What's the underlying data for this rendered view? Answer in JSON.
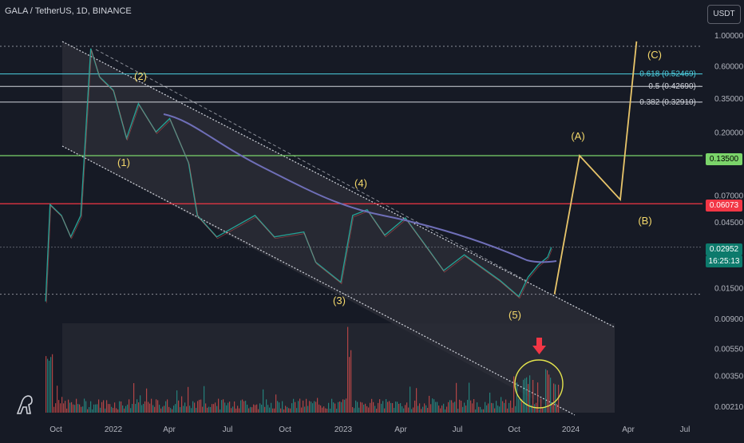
{
  "header": {
    "title": "GALA / TetherUS, 1D, BINANCE"
  },
  "currency_button": "USDT",
  "colors": {
    "background": "#161a25",
    "channel_line": "#d1d4dc",
    "moving_average": "#6f6fb8",
    "wave_labels": "#f5d96b",
    "projection": "#e8c56a",
    "fib_0618": "#4dd0e1",
    "fib_other": "#d1d4dc",
    "green_level": "#7bd46a",
    "red_level": "#f23645",
    "circle": "#e3e34d",
    "arrow": "#f23645"
  },
  "price_labels": {
    "green": "0.13500",
    "red": "0.06073",
    "current": "0.02952",
    "countdown": "16:25:13"
  },
  "chart_data": {
    "type": "line",
    "title": "GALA / TetherUS, 1D, BINANCE",
    "y_scale": "log",
    "y_ticks": [
      "1.00000",
      "0.60000",
      "0.35000",
      "0.20000",
      "0.07000",
      "0.04500",
      "0.01500",
      "0.00900",
      "0.00550",
      "0.00350",
      "0.00210"
    ],
    "x_ticks": [
      "Oct",
      "2022",
      "Apr",
      "Jul",
      "Oct",
      "2023",
      "Apr",
      "Jul",
      "Oct",
      "2024",
      "Apr",
      "Jul"
    ],
    "fib_levels": [
      {
        "label": "0.618 (0.52469)",
        "value": 0.52469
      },
      {
        "label": "0.5 (0.42690)",
        "value": 0.4269
      },
      {
        "label": "0.382 (0.32910)",
        "value": 0.3291
      }
    ],
    "horizontal_levels": [
      {
        "value": 0.135,
        "label": "0.13500"
      },
      {
        "value": 0.06073,
        "label": "0.06073"
      }
    ],
    "wave_labels": [
      "(1)",
      "(2)",
      "(3)",
      "(4)",
      "(5)",
      "(A)",
      "(B)",
      "(C)"
    ],
    "price_series": [
      {
        "date": "2021-09-15",
        "price": 0.012
      },
      {
        "date": "2021-09-22",
        "price": 0.06
      },
      {
        "date": "2021-10-10",
        "price": 0.05
      },
      {
        "date": "2021-10-25",
        "price": 0.035
      },
      {
        "date": "2021-11-10",
        "price": 0.05
      },
      {
        "date": "2021-11-26",
        "price": 0.8
      },
      {
        "date": "2021-12-10",
        "price": 0.5
      },
      {
        "date": "2022-01-01",
        "price": 0.4
      },
      {
        "date": "2022-01-22",
        "price": 0.18
      },
      {
        "date": "2022-02-10",
        "price": 0.32
      },
      {
        "date": "2022-03-10",
        "price": 0.2
      },
      {
        "date": "2022-04-01",
        "price": 0.25
      },
      {
        "date": "2022-05-01",
        "price": 0.12
      },
      {
        "date": "2022-05-15",
        "price": 0.05
      },
      {
        "date": "2022-06-15",
        "price": 0.035
      },
      {
        "date": "2022-08-15",
        "price": 0.05
      },
      {
        "date": "2022-09-15",
        "price": 0.035
      },
      {
        "date": "2022-11-01",
        "price": 0.038
      },
      {
        "date": "2022-11-20",
        "price": 0.023
      },
      {
        "date": "2022-12-30",
        "price": 0.0165
      },
      {
        "date": "2023-01-18",
        "price": 0.05
      },
      {
        "date": "2023-02-10",
        "price": 0.055
      },
      {
        "date": "2023-03-10",
        "price": 0.036
      },
      {
        "date": "2023-04-12",
        "price": 0.048
      },
      {
        "date": "2023-05-15",
        "price": 0.03
      },
      {
        "date": "2023-06-12",
        "price": 0.02
      },
      {
        "date": "2023-07-15",
        "price": 0.026
      },
      {
        "date": "2023-09-10",
        "price": 0.017
      },
      {
        "date": "2023-10-10",
        "price": 0.013
      },
      {
        "date": "2023-10-25",
        "price": 0.018
      },
      {
        "date": "2023-11-10",
        "price": 0.022
      },
      {
        "date": "2023-11-25",
        "price": 0.025
      },
      {
        "date": "2023-12-01",
        "price": 0.02952
      }
    ],
    "projection_path": [
      {
        "date": "2023-12-06",
        "price": 0.0135
      },
      {
        "date": "2024-01-15",
        "price": 0.135
      },
      {
        "date": "2024-03-20",
        "price": 0.065
      },
      {
        "date": "2024-04-15",
        "price": 0.9
      }
    ]
  }
}
